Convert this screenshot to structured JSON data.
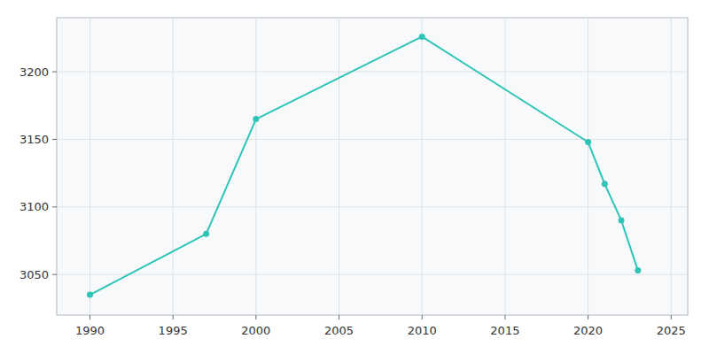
{
  "chart_data": {
    "type": "line",
    "x": [
      1990,
      1997,
      2000,
      2010,
      2020,
      2021,
      2022,
      2023
    ],
    "values": [
      3035,
      3080,
      3165,
      3226,
      3148,
      3117,
      3090,
      3053
    ],
    "color": "#2EC4B6",
    "marker": "circle",
    "xlim": [
      1988,
      2026
    ],
    "ylim": [
      3020,
      3240
    ],
    "xticks": [
      1990,
      1995,
      2000,
      2005,
      2010,
      2015,
      2020,
      2025
    ],
    "yticks": [
      3050,
      3100,
      3150,
      3200
    ],
    "grid": true
  }
}
